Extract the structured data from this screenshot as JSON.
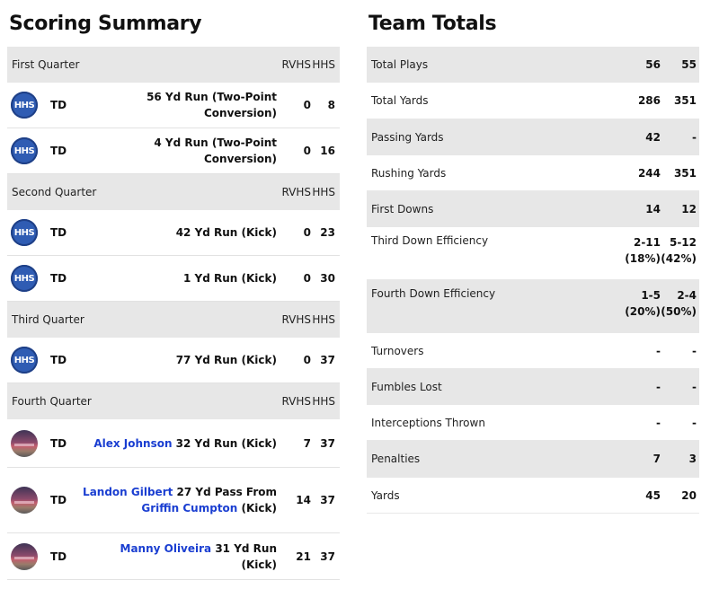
{
  "scoring": {
    "title": "Scoring Summary",
    "quarters": [
      {
        "name": "First Quarter",
        "col1": "RVHS",
        "col2": "HHS",
        "plays": [
          {
            "team": "HHS",
            "type": "TD",
            "player": "",
            "desc": "56 Yd Run (Two-Point Conversion)",
            "passer": "",
            "suffix": "",
            "rvhs": "0",
            "hhs": "8"
          },
          {
            "team": "HHS",
            "type": "TD",
            "player": "",
            "desc": "4 Yd Run (Two-Point Conversion)",
            "passer": "",
            "suffix": "",
            "rvhs": "0",
            "hhs": "16"
          }
        ]
      },
      {
        "name": "Second Quarter",
        "col1": "RVHS",
        "col2": "HHS",
        "plays": [
          {
            "team": "HHS",
            "type": "TD",
            "player": "",
            "desc": "42 Yd Run (Kick)",
            "passer": "",
            "suffix": "",
            "rvhs": "0",
            "hhs": "23"
          },
          {
            "team": "HHS",
            "type": "TD",
            "player": "",
            "desc": "1 Yd Run (Kick)",
            "passer": "",
            "suffix": "",
            "rvhs": "0",
            "hhs": "30"
          }
        ]
      },
      {
        "name": "Third Quarter",
        "col1": "RVHS",
        "col2": "HHS",
        "plays": [
          {
            "team": "HHS",
            "type": "TD",
            "player": "",
            "desc": "77 Yd Run (Kick)",
            "passer": "",
            "suffix": "",
            "rvhs": "0",
            "hhs": "37"
          }
        ]
      },
      {
        "name": "Fourth Quarter",
        "col1": "RVHS",
        "col2": "HHS",
        "plays": [
          {
            "team": "RVHS",
            "type": "TD",
            "player": "Alex Johnson",
            "desc": " 32 Yd Run (Kick)",
            "passer": "",
            "suffix": "",
            "rvhs": "7",
            "hhs": "37"
          },
          {
            "team": "RVHS",
            "type": "TD",
            "player": "Landon Gilbert",
            "desc": " 27 Yd Pass From ",
            "passer": "Griffin Cumpton",
            "suffix": " (Kick)",
            "rvhs": "14",
            "hhs": "37"
          },
          {
            "team": "RVHS",
            "type": "TD",
            "player": "Manny Oliveira",
            "desc": " 31 Yd Run (Kick)",
            "passer": "",
            "suffix": "",
            "rvhs": "21",
            "hhs": "37"
          }
        ]
      }
    ]
  },
  "totals": {
    "title": "Team Totals",
    "rows": [
      {
        "label": "Total Plays",
        "a": "56",
        "b": "55"
      },
      {
        "label": "Total Yards",
        "a": "286",
        "b": "351"
      },
      {
        "label": "Passing Yards",
        "a": "42",
        "b": "-"
      },
      {
        "label": "Rushing Yards",
        "a": "244",
        "b": "351"
      },
      {
        "label": "First Downs",
        "a": "14",
        "b": "12"
      },
      {
        "label": "Third Down Efficiency",
        "a": "2-11",
        "a2": "(18%)",
        "b": "5-12",
        "b2": "(42%)"
      },
      {
        "label": "Fourth Down Efficiency",
        "a": "1-5",
        "a2": "(20%)",
        "b": "2-4",
        "b2": "(50%)"
      },
      {
        "label": "Turnovers",
        "a": "-",
        "b": "-"
      },
      {
        "label": "Fumbles Lost",
        "a": "-",
        "b": "-"
      },
      {
        "label": "Interceptions Thrown",
        "a": "-",
        "b": "-"
      },
      {
        "label": "Penalties",
        "a": "7",
        "b": "3"
      },
      {
        "label": "Yards",
        "a": "45",
        "b": "20"
      }
    ]
  },
  "colors": {
    "link": "#1a3ed1",
    "hhs_logo": "#2f5cb3",
    "shade": "#e7e7e7"
  }
}
